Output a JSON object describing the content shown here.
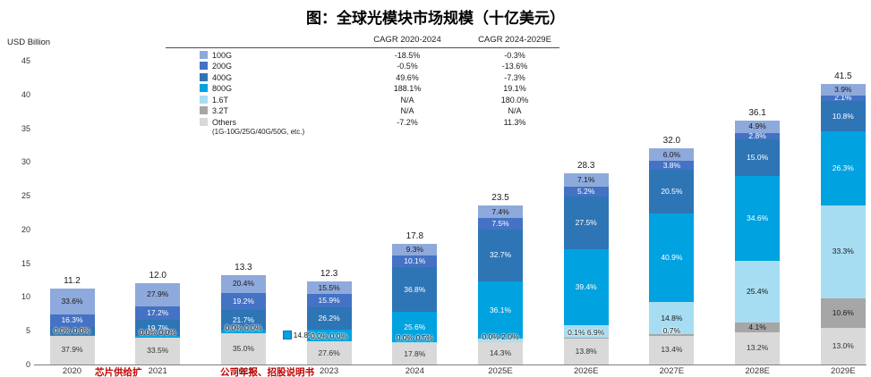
{
  "title": "图：全球光模块市场规模（十亿美元）",
  "y_axis_label": "USD Billion",
  "cagr_table": {
    "headers": [
      "CAGR 2020-2024",
      "CAGR 2024-2029E"
    ]
  },
  "chart_data": {
    "type": "bar",
    "subtype": "stacked-percent",
    "title": "图：全球光模块市场规模（十亿美元）",
    "ylabel": "USD Billion",
    "ylim": [
      0,
      45
    ],
    "y_ticks": [
      0,
      5,
      10,
      15,
      20,
      25,
      30,
      35,
      40,
      45
    ],
    "grid": false,
    "categories": [
      "2020",
      "2021",
      "2022",
      "2023",
      "2024",
      "2025E",
      "2026E",
      "2027E",
      "2028E",
      "2029E"
    ],
    "totals": [
      11.2,
      12.0,
      13.3,
      12.3,
      17.8,
      23.5,
      28.3,
      32.0,
      36.1,
      41.5
    ],
    "stack_order_bottom_to_top": [
      "Others",
      "3.2T",
      "1.6T",
      "800G",
      "400G",
      "200G",
      "100G"
    ],
    "series": [
      {
        "name": "100G",
        "color": "#8ea9db",
        "text_color": "#1a1a1a",
        "cagr_2020_2024": "-18.5%",
        "cagr_2024_2029e": "-0.3%",
        "pct": [
          33.6,
          27.9,
          20.4,
          15.5,
          9.3,
          7.4,
          7.1,
          6.0,
          4.9,
          3.9
        ]
      },
      {
        "name": "200G",
        "color": "#4472c4",
        "text_color": "#ffffff",
        "cagr_2020_2024": "-0.5%",
        "cagr_2024_2029e": "-13.6%",
        "pct": [
          16.3,
          17.2,
          19.2,
          15.9,
          10.1,
          7.5,
          5.2,
          3.8,
          2.8,
          2.1
        ]
      },
      {
        "name": "400G",
        "color": "#2e75b6",
        "text_color": "#ffffff",
        "cagr_2020_2024": "49.6%",
        "cagr_2024_2029e": "-7.3%",
        "pct": [
          11.6,
          19.7,
          21.7,
          26.2,
          36.8,
          32.7,
          27.5,
          20.5,
          15.0,
          10.8
        ],
        "hide_label_at": [
          0
        ]
      },
      {
        "name": "800G",
        "color": "#00a2e0",
        "text_color": "#ffffff",
        "cagr_2020_2024": "188.1%",
        "cagr_2024_2029e": "19.1%",
        "pct": [
          0.6,
          1.7,
          3.7,
          14.8,
          25.6,
          36.1,
          39.4,
          40.9,
          34.6,
          26.3
        ],
        "hide_label_at": [
          0,
          1,
          2
        ],
        "callout_at": [
          3
        ]
      },
      {
        "name": "1.6T",
        "color": "#a7ddf2",
        "text_color": "#1a1a1a",
        "cagr_2020_2024": "N/A",
        "cagr_2024_2029e": "180.0%",
        "pct": [
          0.0,
          0.0,
          0.0,
          0.0,
          0.5,
          2.0,
          6.9,
          14.8,
          25.4,
          33.3
        ],
        "force_low_at": [
          6
        ]
      },
      {
        "name": "3.2T",
        "color": "#a6a6a6",
        "text_color": "#1a1a1a",
        "cagr_2020_2024": "N/A",
        "cagr_2024_2029e": "N/A",
        "pct": [
          0.0,
          0.0,
          0.0,
          0.0,
          0.0,
          0.0,
          0.1,
          0.7,
          4.1,
          10.6
        ]
      },
      {
        "name": "Others",
        "note": "(1G-10G/25G/40G/50G, etc.)",
        "color": "#d9d9d9",
        "text_color": "#333333",
        "cagr_2020_2024": "-7.2%",
        "cagr_2024_2029e": "11.3%",
        "pct": [
          37.9,
          33.5,
          35.0,
          27.6,
          17.8,
          14.3,
          13.8,
          13.4,
          13.2,
          13.0
        ]
      }
    ],
    "legend_position": "top-left-table"
  },
  "footer": {
    "color": "#c00000",
    "source_fragments": [
      {
        "text": "芯片供给扩",
        "x": 106
      },
      {
        "text": "公司年报、招股说明书",
        "x": 246
      }
    ]
  }
}
